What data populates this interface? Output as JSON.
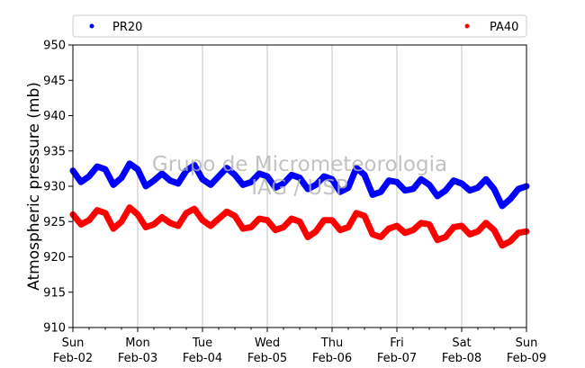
{
  "colors": {
    "PR20": "#0000ff",
    "PA40": "#ff0000",
    "grid": "#b0b0b0"
  },
  "watermark": {
    "line1": "Grupo de Micrometeorologia",
    "line2": "IAG / USP"
  },
  "chart_data": {
    "type": "scatter",
    "title": "",
    "xlabel": "",
    "ylabel": "Atmospheric pressure (mb)",
    "xlim": [
      "2025-02-02 00:00",
      "2025-02-09 00:00"
    ],
    "ylim": [
      910,
      950
    ],
    "yticks": [
      910,
      915,
      920,
      925,
      930,
      935,
      940,
      945,
      950
    ],
    "xticks": [
      {
        "day": "Sun",
        "date": "Feb-02"
      },
      {
        "day": "Mon",
        "date": "Feb-03"
      },
      {
        "day": "Tue",
        "date": "Feb-04"
      },
      {
        "day": "Wed",
        "date": "Feb-05"
      },
      {
        "day": "Thu",
        "date": "Feb-06"
      },
      {
        "day": "Fri",
        "date": "Feb-07"
      },
      {
        "day": "Sat",
        "date": "Feb-08"
      },
      {
        "day": "Sun",
        "date": "Feb-09"
      }
    ],
    "grid": "vertical",
    "legend": "top, above plot",
    "series": [
      {
        "name": "PR20",
        "color": "#0000ff",
        "x": [
          "2025-02-02 00:00",
          "2025-02-02 03:00",
          "2025-02-02 06:00",
          "2025-02-02 09:00",
          "2025-02-02 12:00",
          "2025-02-02 15:00",
          "2025-02-02 18:00",
          "2025-02-02 21:00",
          "2025-02-03 00:00",
          "2025-02-03 03:00",
          "2025-02-03 06:00",
          "2025-02-03 09:00",
          "2025-02-03 12:00",
          "2025-02-03 15:00",
          "2025-02-03 18:00",
          "2025-02-03 21:00",
          "2025-02-04 00:00",
          "2025-02-04 03:00",
          "2025-02-04 06:00",
          "2025-02-04 09:00",
          "2025-02-04 12:00",
          "2025-02-04 15:00",
          "2025-02-04 18:00",
          "2025-02-04 21:00",
          "2025-02-05 00:00",
          "2025-02-05 03:00",
          "2025-02-05 06:00",
          "2025-02-05 09:00",
          "2025-02-05 12:00",
          "2025-02-05 15:00",
          "2025-02-05 18:00",
          "2025-02-05 21:00",
          "2025-02-06 00:00",
          "2025-02-06 03:00",
          "2025-02-06 06:00",
          "2025-02-06 09:00",
          "2025-02-06 12:00",
          "2025-02-06 15:00",
          "2025-02-06 18:00",
          "2025-02-06 21:00",
          "2025-02-07 00:00",
          "2025-02-07 03:00",
          "2025-02-07 06:00",
          "2025-02-07 09:00",
          "2025-02-07 12:00",
          "2025-02-07 15:00",
          "2025-02-07 18:00",
          "2025-02-07 21:00",
          "2025-02-08 00:00",
          "2025-02-08 03:00",
          "2025-02-08 06:00",
          "2025-02-08 09:00",
          "2025-02-08 12:00",
          "2025-02-08 15:00",
          "2025-02-08 18:00",
          "2025-02-08 21:00",
          "2025-02-09 00:00"
        ],
        "y": [
          932.2,
          930.6,
          931.4,
          932.8,
          932.4,
          930.2,
          931.2,
          933.2,
          932.4,
          930.0,
          930.8,
          931.8,
          930.8,
          930.4,
          932.2,
          933.0,
          931.0,
          930.2,
          931.4,
          932.6,
          931.6,
          930.2,
          930.6,
          931.8,
          931.4,
          929.8,
          930.4,
          931.6,
          931.2,
          929.6,
          930.2,
          931.4,
          931.0,
          929.2,
          929.8,
          932.6,
          931.6,
          928.8,
          929.2,
          930.8,
          930.6,
          929.4,
          929.6,
          931.0,
          930.2,
          928.6,
          929.4,
          930.8,
          930.4,
          929.4,
          929.8,
          931.0,
          929.6,
          927.2,
          928.2,
          929.6,
          930.0
        ]
      },
      {
        "name": "PA40",
        "color": "#ff0000",
        "x": [
          "2025-02-02 00:00",
          "2025-02-02 03:00",
          "2025-02-02 06:00",
          "2025-02-02 09:00",
          "2025-02-02 12:00",
          "2025-02-02 15:00",
          "2025-02-02 18:00",
          "2025-02-02 21:00",
          "2025-02-03 00:00",
          "2025-02-03 03:00",
          "2025-02-03 06:00",
          "2025-02-03 09:00",
          "2025-02-03 12:00",
          "2025-02-03 15:00",
          "2025-02-03 18:00",
          "2025-02-03 21:00",
          "2025-02-04 00:00",
          "2025-02-04 03:00",
          "2025-02-04 06:00",
          "2025-02-04 09:00",
          "2025-02-04 12:00",
          "2025-02-04 15:00",
          "2025-02-04 18:00",
          "2025-02-04 21:00",
          "2025-02-05 00:00",
          "2025-02-05 03:00",
          "2025-02-05 06:00",
          "2025-02-05 09:00",
          "2025-02-05 12:00",
          "2025-02-05 15:00",
          "2025-02-05 18:00",
          "2025-02-05 21:00",
          "2025-02-06 00:00",
          "2025-02-06 03:00",
          "2025-02-06 06:00",
          "2025-02-06 09:00",
          "2025-02-06 12:00",
          "2025-02-06 15:00",
          "2025-02-06 18:00",
          "2025-02-06 21:00",
          "2025-02-07 00:00",
          "2025-02-07 03:00",
          "2025-02-07 06:00",
          "2025-02-07 09:00",
          "2025-02-07 12:00",
          "2025-02-07 15:00",
          "2025-02-07 18:00",
          "2025-02-07 21:00",
          "2025-02-08 00:00",
          "2025-02-08 03:00",
          "2025-02-08 06:00",
          "2025-02-08 09:00",
          "2025-02-08 12:00",
          "2025-02-08 15:00",
          "2025-02-08 18:00",
          "2025-02-08 21:00",
          "2025-02-09 00:00"
        ],
        "y": [
          926.0,
          924.6,
          925.2,
          926.6,
          926.2,
          924.0,
          925.0,
          927.0,
          926.0,
          924.2,
          924.6,
          925.6,
          924.8,
          924.4,
          926.2,
          926.8,
          925.2,
          924.4,
          925.4,
          926.4,
          925.8,
          924.0,
          924.2,
          925.4,
          925.2,
          923.8,
          924.2,
          925.4,
          925.0,
          922.8,
          923.6,
          925.2,
          925.2,
          923.8,
          924.2,
          926.2,
          925.8,
          923.2,
          922.8,
          924.0,
          924.4,
          923.4,
          923.8,
          924.8,
          924.6,
          922.4,
          922.8,
          924.2,
          924.4,
          923.2,
          923.6,
          924.8,
          923.8,
          921.6,
          922.2,
          923.4,
          923.6
        ]
      }
    ]
  }
}
